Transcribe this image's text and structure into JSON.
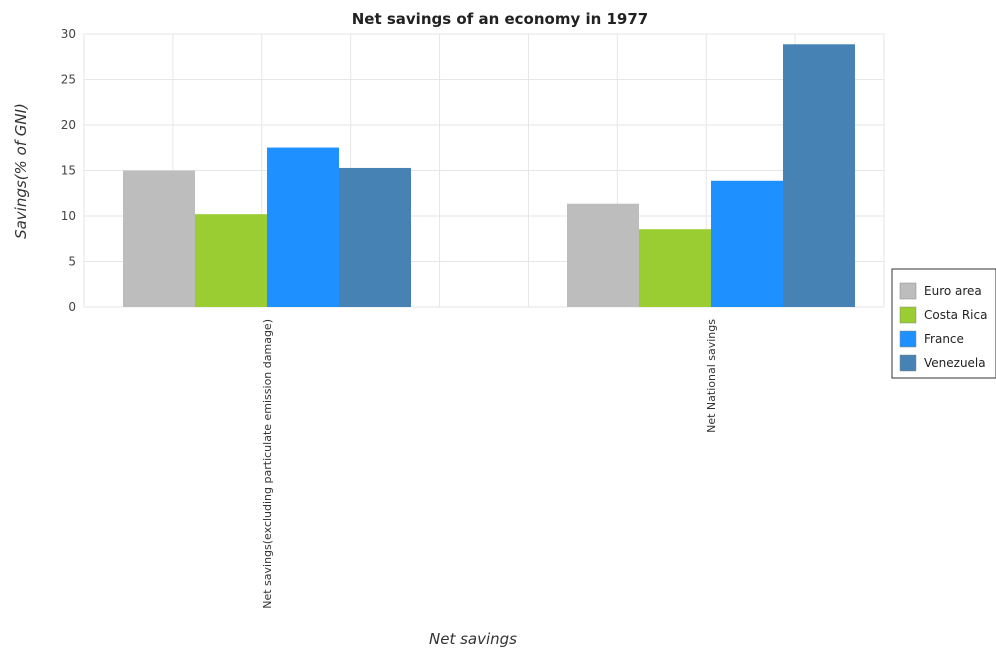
{
  "chart_data": {
    "type": "bar",
    "title": "Net savings of an economy in 1977",
    "xlabel": "Net savings",
    "ylabel": "Savings(% of GNI)",
    "ylim": [
      0,
      30
    ],
    "yticks": [
      "0",
      "5",
      "10",
      "15",
      "20",
      "25",
      "30"
    ],
    "grid": true,
    "legend_position": "right",
    "categories": [
      "Net savings(excluding particulate emission damage)",
      "Net National savings"
    ],
    "series": [
      {
        "name": "Euro area",
        "color": "#bdbdbd",
        "values": [
          15.0,
          11.35
        ]
      },
      {
        "name": "Costa Rica",
        "color": "#9acd32",
        "values": [
          10.2,
          8.55
        ]
      },
      {
        "name": "France",
        "color": "#1e90ff",
        "values": [
          17.52,
          13.87
        ]
      },
      {
        "name": "Venezuela",
        "color": "#4682b4",
        "values": [
          15.28,
          28.87
        ]
      }
    ]
  }
}
